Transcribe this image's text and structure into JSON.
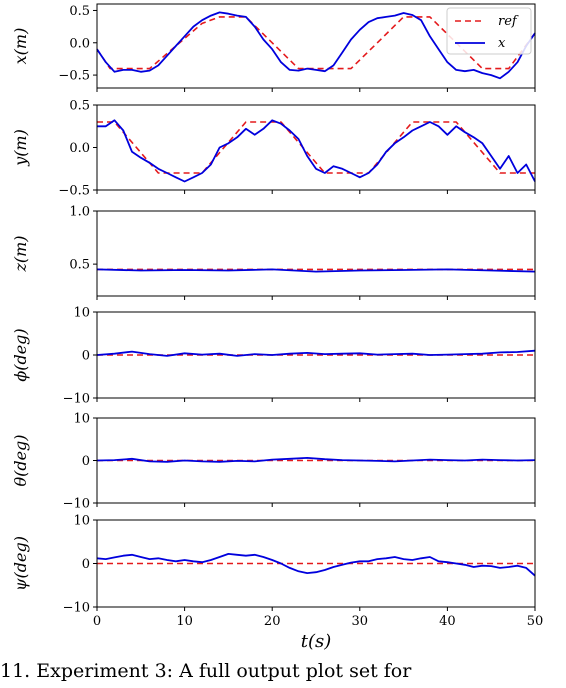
{
  "chart_data": {
    "type": "line",
    "xlabel": "t(s)",
    "x_ticks": [
      "0",
      "10",
      "20",
      "30",
      "40",
      "50"
    ],
    "xlim": [
      0,
      50
    ],
    "legend": {
      "placement": "top-right",
      "entries": [
        "ref",
        "x"
      ]
    },
    "colors": {
      "ref": "#e41a1c",
      "actual": "#0000dd"
    },
    "panels": [
      {
        "ylabel": "x(m)",
        "ylim": [
          -0.7,
          0.6
        ],
        "yticks": [
          0.5,
          0.0,
          -0.5
        ],
        "ytick_labels": [
          "0.5",
          "0.0",
          "−0.5"
        ],
        "series": [
          {
            "name": "ref",
            "style": "dashed",
            "x": [
              0,
              1.5,
              6,
              9,
              12,
              14,
              17,
              20,
              23,
              26,
              29,
              32,
              35,
              38,
              41,
              44,
              47,
              50
            ],
            "y": [
              -0.1,
              -0.4,
              -0.4,
              -0.05,
              0.3,
              0.4,
              0.4,
              0.0,
              -0.4,
              -0.4,
              -0.4,
              0.0,
              0.4,
              0.4,
              0.0,
              -0.4,
              -0.4,
              0.15
            ]
          },
          {
            "name": "x",
            "style": "solid",
            "x": [
              0,
              1,
              2,
              3,
              4,
              5,
              6,
              7,
              8,
              9,
              10,
              11,
              12,
              13,
              14,
              15,
              16,
              17,
              18,
              19,
              20,
              21,
              22,
              23,
              24,
              25,
              26,
              27,
              28,
              29,
              30,
              31,
              32,
              33,
              34,
              35,
              36,
              37,
              38,
              39,
              40,
              41,
              42,
              43,
              44,
              45,
              46,
              47,
              48,
              49,
              50
            ],
            "y": [
              -0.1,
              -0.3,
              -0.45,
              -0.42,
              -0.42,
              -0.45,
              -0.43,
              -0.35,
              -0.2,
              -0.05,
              0.1,
              0.25,
              0.35,
              0.42,
              0.47,
              0.45,
              0.42,
              0.4,
              0.25,
              0.05,
              -0.1,
              -0.3,
              -0.42,
              -0.43,
              -0.4,
              -0.42,
              -0.44,
              -0.35,
              -0.15,
              0.05,
              0.2,
              0.32,
              0.38,
              0.4,
              0.42,
              0.46,
              0.43,
              0.35,
              0.1,
              -0.1,
              -0.3,
              -0.42,
              -0.44,
              -0.42,
              -0.47,
              -0.5,
              -0.55,
              -0.45,
              -0.3,
              -0.05,
              0.15
            ]
          }
        ]
      },
      {
        "ylabel": "y(m)",
        "ylim": [
          -0.5,
          0.5
        ],
        "yticks": [
          0.5,
          0.0,
          -0.5
        ],
        "ytick_labels": [
          "0.5",
          "0.0",
          "−0.5"
        ],
        "series": [
          {
            "name": "ref",
            "style": "dashed",
            "x": [
              0,
              2,
              7,
              12,
              17,
              21,
              26,
              31,
              36,
              41,
              46,
              50
            ],
            "y": [
              0.3,
              0.3,
              -0.3,
              -0.3,
              0.3,
              0.3,
              -0.3,
              -0.3,
              0.3,
              0.3,
              -0.3,
              -0.3
            ]
          },
          {
            "name": "x",
            "style": "solid",
            "x": [
              0,
              1,
              2,
              3,
              4,
              5,
              6,
              7,
              8,
              9,
              10,
              11,
              12,
              13,
              14,
              15,
              16,
              17,
              18,
              19,
              20,
              21,
              22,
              23,
              24,
              25,
              26,
              27,
              28,
              29,
              30,
              31,
              32,
              33,
              34,
              35,
              36,
              37,
              38,
              39,
              40,
              41,
              42,
              43,
              44,
              45,
              46,
              47,
              48,
              49,
              50
            ],
            "y": [
              0.25,
              0.25,
              0.32,
              0.2,
              -0.05,
              -0.12,
              -0.18,
              -0.25,
              -0.3,
              -0.35,
              -0.4,
              -0.35,
              -0.3,
              -0.2,
              0.0,
              0.05,
              0.12,
              0.22,
              0.15,
              0.22,
              0.32,
              0.28,
              0.2,
              0.1,
              -0.1,
              -0.25,
              -0.3,
              -0.22,
              -0.25,
              -0.3,
              -0.35,
              -0.3,
              -0.2,
              -0.05,
              0.05,
              0.12,
              0.2,
              0.25,
              0.3,
              0.25,
              0.15,
              0.25,
              0.18,
              0.12,
              0.05,
              -0.1,
              -0.25,
              -0.1,
              -0.3,
              -0.2,
              -0.4
            ]
          }
        ]
      },
      {
        "ylabel": "z(m)",
        "ylim": [
          0.2,
          1.0
        ],
        "yticks": [
          1.0,
          0.5
        ],
        "ytick_labels": [
          "1.0",
          "0.5"
        ],
        "series": [
          {
            "name": "ref",
            "style": "dashed",
            "x": [
              0,
              50
            ],
            "y": [
              0.45,
              0.45
            ]
          },
          {
            "name": "x",
            "style": "solid",
            "x": [
              0,
              5,
              10,
              15,
              20,
              25,
              30,
              35,
              40,
              45,
              50
            ],
            "y": [
              0.45,
              0.44,
              0.445,
              0.44,
              0.45,
              0.43,
              0.44,
              0.445,
              0.45,
              0.44,
              0.43
            ]
          }
        ]
      },
      {
        "ylabel": "ϕ(deg)",
        "ylim": [
          -10,
          10
        ],
        "yticks": [
          10,
          0,
          -10
        ],
        "ytick_labels": [
          "10",
          "0",
          "−10"
        ],
        "series": [
          {
            "name": "ref",
            "style": "dashed",
            "x": [
              0,
              50
            ],
            "y": [
              0,
              0
            ]
          },
          {
            "name": "x",
            "style": "solid",
            "x": [
              0,
              2,
              4,
              6,
              8,
              10,
              12,
              14,
              16,
              18,
              20,
              22,
              24,
              26,
              28,
              30,
              32,
              34,
              36,
              38,
              40,
              42,
              44,
              46,
              48,
              50
            ],
            "y": [
              0,
              0.3,
              0.8,
              0.2,
              -0.2,
              0.4,
              0.1,
              0.3,
              -0.2,
              0.2,
              0.0,
              0.3,
              0.5,
              0.2,
              0.3,
              0.4,
              0.1,
              0.2,
              0.3,
              0.0,
              0.1,
              0.2,
              0.3,
              0.6,
              0.7,
              1.0
            ]
          }
        ]
      },
      {
        "ylabel": "θ(deg)",
        "ylim": [
          -10,
          10
        ],
        "yticks": [
          10,
          0,
          -10
        ],
        "ytick_labels": [
          "10",
          "0",
          "−10"
        ],
        "series": [
          {
            "name": "ref",
            "style": "dashed",
            "x": [
              0,
              50
            ],
            "y": [
              0,
              0
            ]
          },
          {
            "name": "x",
            "style": "solid",
            "x": [
              0,
              2,
              4,
              6,
              8,
              10,
              12,
              14,
              16,
              18,
              20,
              22,
              24,
              26,
              28,
              30,
              32,
              34,
              36,
              38,
              40,
              42,
              44,
              46,
              48,
              50
            ],
            "y": [
              0,
              0.1,
              0.4,
              -0.2,
              -0.3,
              0.0,
              -0.2,
              -0.3,
              -0.1,
              -0.2,
              0.2,
              0.4,
              0.6,
              0.3,
              0.1,
              0.0,
              -0.1,
              -0.2,
              0.0,
              0.2,
              0.1,
              0.0,
              0.2,
              0.1,
              0.0,
              0.1
            ]
          }
        ]
      },
      {
        "ylabel": "ψ(deg)",
        "ylim": [
          -10,
          10
        ],
        "yticks": [
          10,
          0,
          -10
        ],
        "ytick_labels": [
          "10",
          "0",
          "−10"
        ],
        "series": [
          {
            "name": "ref",
            "style": "dashed",
            "x": [
              0,
              50
            ],
            "y": [
              0,
              0
            ]
          },
          {
            "name": "x",
            "style": "solid",
            "x": [
              0,
              1,
              2,
              3,
              4,
              5,
              6,
              7,
              8,
              9,
              10,
              11,
              12,
              13,
              14,
              15,
              16,
              17,
              18,
              19,
              20,
              21,
              22,
              23,
              24,
              25,
              26,
              27,
              28,
              29,
              30,
              31,
              32,
              33,
              34,
              35,
              36,
              37,
              38,
              39,
              40,
              41,
              42,
              43,
              44,
              45,
              46,
              47,
              48,
              49,
              50
            ],
            "y": [
              1.2,
              1.0,
              1.4,
              1.8,
              2.0,
              1.5,
              1.0,
              1.2,
              0.8,
              0.5,
              0.8,
              0.5,
              0.3,
              0.8,
              1.5,
              2.2,
              2.0,
              1.8,
              2.0,
              1.5,
              0.8,
              0.0,
              -1.0,
              -1.8,
              -2.2,
              -2.0,
              -1.5,
              -0.8,
              -0.3,
              0.2,
              0.5,
              0.5,
              1.0,
              1.2,
              1.5,
              1.0,
              0.8,
              1.2,
              1.5,
              0.5,
              0.3,
              0.0,
              -0.3,
              -0.8,
              -0.5,
              -0.6,
              -1.0,
              -0.8,
              -0.5,
              -1.0,
              -2.8
            ]
          }
        ]
      }
    ]
  },
  "caption": "11.  Experiment 3: A full output plot set for"
}
